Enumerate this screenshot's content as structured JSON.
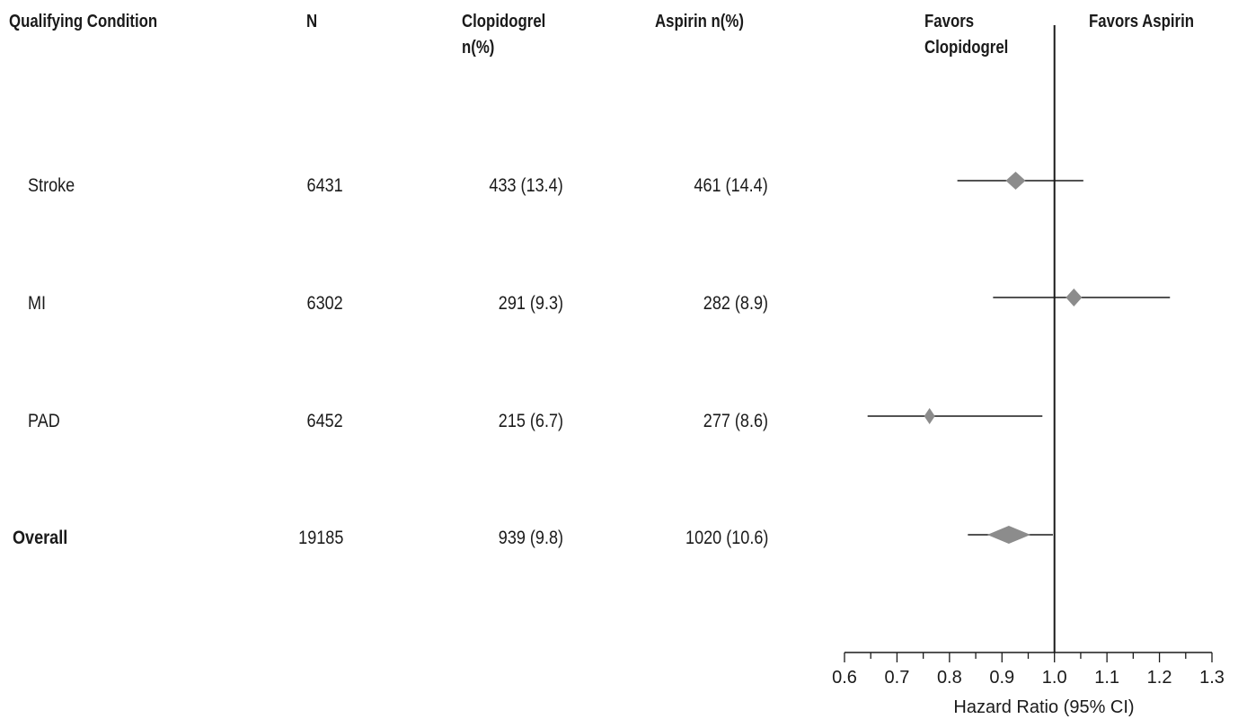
{
  "headers": {
    "condition": "Qualifying Condition",
    "n": "N",
    "clopidogrel": [
      "Clopidogrel",
      "n(%)"
    ],
    "aspirin": "Aspirin n(%)",
    "favors_left": [
      "Favors",
      "Clopidogrel"
    ],
    "favors_right": "Favors Aspirin"
  },
  "rows": [
    {
      "condition": "Stroke",
      "n": "6431",
      "clopidogrel": "433 (13.4)",
      "aspirin": "461 (14.4)",
      "bold": false
    },
    {
      "condition": "MI",
      "n": "6302",
      "clopidogrel": "291 (9.3)",
      "aspirin": "282 (8.9)",
      "bold": false
    },
    {
      "condition": "PAD",
      "n": "6452",
      "clopidogrel": "215 (6.7)",
      "aspirin": "277 (8.6)",
      "bold": false
    },
    {
      "condition": "Overall",
      "n": "19185",
      "clopidogrel": "939 (9.8)",
      "aspirin": "1020 (10.6)",
      "bold": true
    }
  ],
  "chart_data": {
    "type": "forest",
    "xlabel": "Hazard Ratio (95% CI)",
    "xlim": [
      0.6,
      1.3
    ],
    "ticks": [
      "0.6",
      "0.7",
      "0.8",
      "0.9",
      "1.0",
      "1.1",
      "1.2",
      "1.3"
    ],
    "reference_line": 1.0,
    "marker_color": "#8c8c8c",
    "points": [
      {
        "label": "Stroke",
        "hr": 0.926,
        "lower": 0.815,
        "upper": 1.055
      },
      {
        "label": "MI",
        "hr": 1.037,
        "lower": 0.883,
        "upper": 1.22
      },
      {
        "label": "PAD",
        "hr": 0.762,
        "lower": 0.644,
        "upper": 0.977
      },
      {
        "label": "Overall",
        "hr": 0.913,
        "lower": 0.835,
        "upper": 0.997
      }
    ]
  }
}
